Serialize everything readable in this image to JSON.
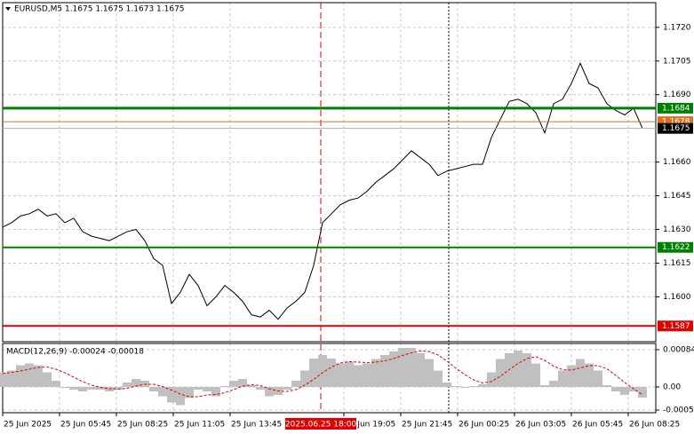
{
  "chart_data": [
    {
      "type": "line",
      "title": "EURUSD,M5  1.1675 1.1675 1.1673 1.1675",
      "x": [
        0,
        5,
        10,
        15,
        20,
        25,
        30,
        35,
        40,
        45,
        50,
        55,
        60,
        65,
        70,
        75,
        80,
        85,
        90,
        95,
        100,
        105,
        110,
        115,
        120,
        125,
        130,
        135,
        140,
        145,
        150,
        155,
        160,
        165,
        170,
        175,
        180,
        185,
        190,
        195,
        200,
        205,
        210,
        215,
        220,
        225,
        230,
        235,
        240,
        245,
        250,
        255,
        260,
        265,
        270,
        275,
        280,
        285,
        290,
        295,
        300,
        305,
        310,
        315,
        320,
        325,
        330,
        335,
        340,
        345,
        350,
        355,
        360
      ],
      "series": [
        {
          "color": "#000000",
          "values": [
            1.1631,
            1.1633,
            1.1636,
            1.1637,
            1.1639,
            1.1636,
            1.1637,
            1.1633,
            1.1635,
            1.1629,
            1.1627,
            1.1626,
            1.1625,
            1.1627,
            1.1629,
            1.163,
            1.1625,
            1.1617,
            1.1614,
            1.1597,
            1.1602,
            1.161,
            1.1605,
            1.1596,
            1.16,
            1.1605,
            1.1602,
            1.1598,
            1.1592,
            1.1591,
            1.1594,
            1.159,
            1.1595,
            1.1598,
            1.1602,
            1.1614,
            1.1633,
            1.1637,
            1.1641,
            1.1643,
            1.1644,
            1.1647,
            1.1651,
            1.1654,
            1.1657,
            1.1661,
            1.1665,
            1.1662,
            1.1659,
            1.1654,
            1.1656,
            1.1657,
            1.1658,
            1.1659,
            1.1659,
            1.1671,
            1.1679,
            1.1687,
            1.1688,
            1.1686,
            1.1682,
            1.1673,
            1.1686,
            1.1688,
            1.1695,
            1.1704,
            1.1695,
            1.1693,
            1.1686,
            1.1683,
            1.1681,
            1.1684,
            1.1675
          ]
        }
      ],
      "xlim": [
        0,
        367.5
      ],
      "xticks": [
        {
          "value": 0,
          "label": "25 Jun 2025"
        },
        {
          "value": 32,
          "label": "25 Jun 05:45"
        },
        {
          "value": 64,
          "label": "25 Jun 08:25"
        },
        {
          "value": 96,
          "label": "25 Jun 11:05"
        },
        {
          "value": 128,
          "label": "25 Jun 13:45"
        },
        {
          "value": 192,
          "label": "25 Jun 19:05"
        },
        {
          "value": 224,
          "label": "25 Jun 21:45"
        },
        {
          "value": 256,
          "label": "26 Jun 00:25"
        },
        {
          "value": 288,
          "label": "26 Jun 03:05"
        },
        {
          "value": 320,
          "label": "26 Jun 05:45"
        },
        {
          "value": 352,
          "label": "26 Jun 08:25"
        }
      ],
      "ylim": [
        1.158,
        1.1731
      ],
      "yticks": [
        {
          "value": 1.172,
          "label": "1.1720"
        },
        1.1705,
        {
          "value": 1.169,
          "label": "1.1690"
        },
        {
          "value": 1.166,
          "label": "1.1660"
        },
        1.1645,
        {
          "value": 1.163,
          "label": "1.1630"
        },
        1.1615,
        {
          "value": 1.16,
          "label": "1.1600"
        }
      ],
      "grid": true,
      "levels": [
        {
          "value": 1.1684,
          "color": "#008000",
          "width": 3
        },
        {
          "value": 1.1678,
          "color": "#e07020",
          "width": 1
        },
        {
          "value": 1.1622,
          "color": "#008000",
          "width": 2
        },
        {
          "value": 1.1587,
          "color": "#e00000",
          "width": 2
        }
      ],
      "vlines": [
        {
          "x": 179,
          "label": "2025.06.25 18:00",
          "color": "#e00000",
          "style": "dashed"
        },
        {
          "x": 251,
          "color": "#000000",
          "style": "dotted"
        }
      ]
    },
    {
      "type": "macd",
      "title": "MACD(12,26,9) -0.00024 -0.00018",
      "series": [
        {
          "type": "bar",
          "color": "#c0c0c0",
          "values": [
            0.00033,
            0.00037,
            0.00049,
            0.00053,
            0.00049,
            0.00033,
            0.00014,
            -2e-05,
            -6e-05,
            -0.0001,
            -6e-05,
            -6e-05,
            -0.0001,
            -6e-05,
            0.0001,
            0.00018,
            0.00014,
            -0.0001,
            -0.00021,
            -0.00035,
            -0.00041,
            -0.00025,
            -6e-05,
            -0.0001,
            -0.00021,
            2e-05,
            0.00014,
            0.00018,
            4e-05,
            -6e-05,
            -0.00021,
            -0.00018,
            -6e-05,
            0.00014,
            0.00037,
            0.00064,
            0.00072,
            0.00064,
            0.00053,
            0.00057,
            0.00049,
            0.00053,
            0.00063,
            0.00072,
            0.0008,
            0.00088,
            0.00088,
            0.00076,
            0.00063,
            0.00037,
            0.0001,
            2e-05,
            -2e-05,
            2e-05,
            6e-05,
            0.00033,
            0.00063,
            0.00076,
            0.00082,
            0.00076,
            0.00053,
            4e-05,
            0.00014,
            0.00037,
            0.00049,
            0.00063,
            0.00053,
            0.00037,
            4e-05,
            -0.0001,
            -0.00018,
            -0.0001,
            -0.00024
          ]
        },
        {
          "type": "line",
          "color": "#e00000",
          "style": "dashed",
          "values": [
            0.0003,
            0.00033,
            0.00036,
            0.0004,
            0.00044,
            0.00045,
            0.0004,
            0.00032,
            0.00022,
            0.00012,
            4e-05,
            -1e-05,
            -4e-05,
            -5e-05,
            -3e-05,
            2e-05,
            6e-05,
            6e-05,
            1e-05,
            -7e-05,
            -0.00016,
            -0.00022,
            -0.00022,
            -0.00018,
            -0.00017,
            -0.00013,
            -6e-05,
            2e-05,
            5e-05,
            3e-05,
            -4e-05,
            -9e-05,
            -0.0001,
            -6e-05,
            4e-05,
            0.00017,
            0.00032,
            0.00045,
            0.00054,
            0.00057,
            0.00056,
            0.00055,
            0.00056,
            0.00059,
            0.00064,
            0.00071,
            0.00077,
            0.00081,
            0.0008,
            0.00072,
            0.00058,
            0.00042,
            0.00028,
            0.00016,
            9e-05,
            0.00012,
            0.00024,
            0.00039,
            0.00053,
            0.00064,
            0.00068,
            0.0006,
            0.00047,
            0.00039,
            0.00038,
            0.00043,
            0.00048,
            0.00048,
            0.00041,
            0.00026,
            0.0001,
            -4e-05,
            -0.00018
          ]
        }
      ],
      "ylim": [
        -0.00058,
        0.00098
      ],
      "yticks": [
        0.00084,
        {
          "value": 0,
          "label": "0.00"
        },
        -0.00052
      ],
      "grid": true
    }
  ]
}
